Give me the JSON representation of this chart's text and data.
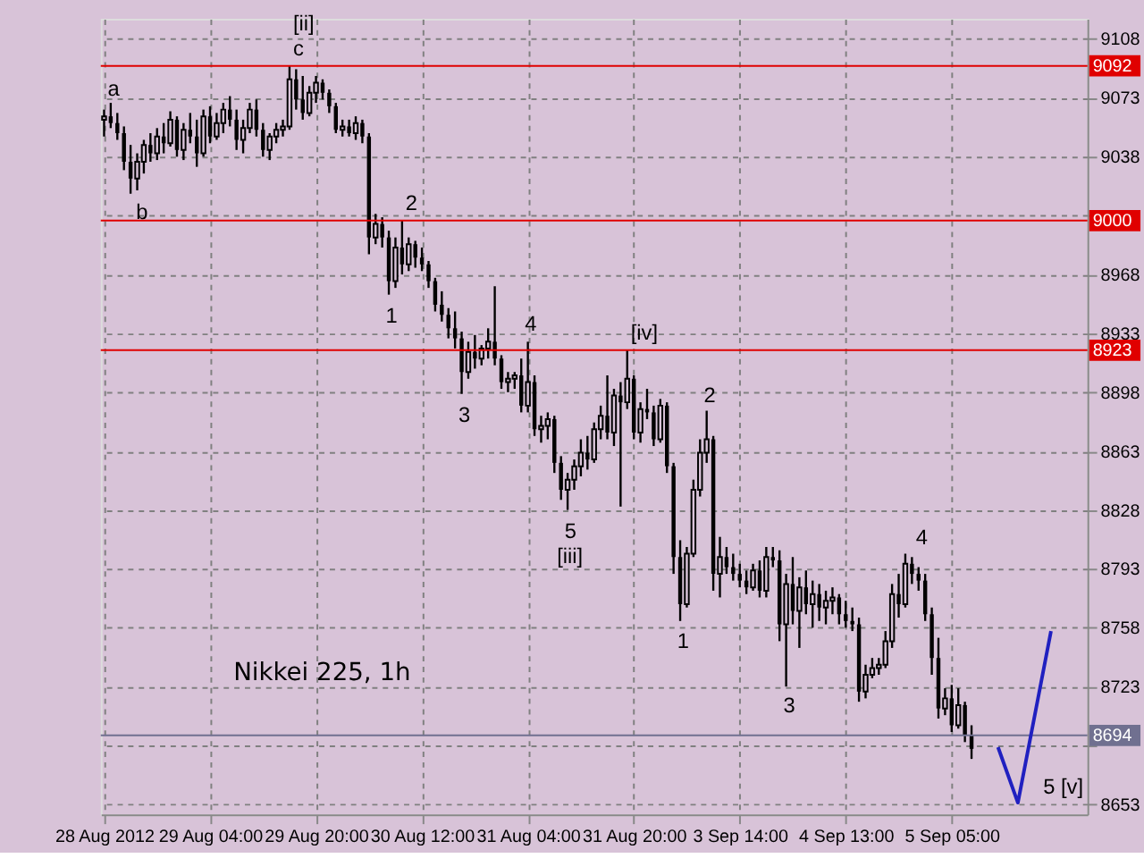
{
  "chart_data": {
    "type": "candlestick",
    "title": "Nikkei 225, 1h",
    "categories": [
      "28 Aug 2012",
      null,
      null,
      null,
      null,
      null,
      null,
      null,
      null,
      null,
      null,
      null,
      null,
      null,
      null,
      null,
      "29 Aug 04:00",
      null,
      null,
      null,
      null,
      null,
      null,
      null,
      null,
      null,
      null,
      null,
      null,
      null,
      null,
      null,
      "29 Aug 20:00",
      null,
      null,
      null,
      null,
      null,
      null,
      null,
      null,
      null,
      null,
      null,
      null,
      null,
      null,
      null,
      "30 Aug 12:00",
      null,
      null,
      null,
      null,
      null,
      null,
      null,
      null,
      null,
      null,
      null,
      null,
      null,
      null,
      null,
      "31 Aug 04:00",
      null,
      null,
      null,
      null,
      null,
      null,
      null,
      null,
      null,
      null,
      null,
      null,
      null,
      null,
      null,
      "31 Aug 20:00",
      null,
      null,
      null,
      null,
      null,
      null,
      null,
      null,
      null,
      null,
      null,
      null,
      null,
      null,
      null,
      "3 Sep 14:00",
      null,
      null,
      null,
      null,
      null,
      null,
      null,
      null,
      null,
      null,
      null,
      null,
      null,
      null,
      null,
      "4 Sep 13:00",
      null,
      null,
      null,
      null,
      null,
      null,
      null,
      null,
      null,
      null,
      null,
      null,
      null,
      null,
      null,
      "5 Sep 05:00",
      null,
      null,
      null,
      null,
      null,
      null,
      null,
      null,
      null,
      null,
      null,
      null,
      null,
      null,
      null,
      null,
      null,
      null,
      null,
      null
    ],
    "ohlc": [
      [
        9060,
        9066,
        9050,
        9062
      ],
      [
        9062,
        9070,
        9055,
        9058
      ],
      [
        9058,
        9064,
        9048,
        9052
      ],
      [
        9052,
        9056,
        9030,
        9035
      ],
      [
        9035,
        9045,
        9016,
        9025
      ],
      [
        9025,
        9040,
        9018,
        9035
      ],
      [
        9035,
        9048,
        9028,
        9045
      ],
      [
        9045,
        9052,
        9035,
        9040
      ],
      [
        9040,
        9055,
        9036,
        9050
      ],
      [
        9050,
        9058,
        9040,
        9046
      ],
      [
        9046,
        9065,
        9044,
        9060
      ],
      [
        9060,
        9062,
        9038,
        9042
      ],
      [
        9042,
        9058,
        9036,
        9054
      ],
      [
        9054,
        9064,
        9046,
        9050
      ],
      [
        9050,
        9060,
        9032,
        9040
      ],
      [
        9040,
        9066,
        9038,
        9062
      ],
      [
        9062,
        9068,
        9046,
        9050
      ],
      [
        9050,
        9064,
        9048,
        9058
      ],
      [
        9058,
        9070,
        9052,
        9066
      ],
      [
        9066,
        9074,
        9056,
        9060
      ],
      [
        9060,
        9066,
        9042,
        9048
      ],
      [
        9048,
        9060,
        9040,
        9055
      ],
      [
        9055,
        9070,
        9052,
        9066
      ],
      [
        9066,
        9072,
        9050,
        9054
      ],
      [
        9054,
        9058,
        9038,
        9042
      ],
      [
        9042,
        9052,
        9036,
        9050
      ],
      [
        9050,
        9058,
        9046,
        9054
      ],
      [
        9054,
        9060,
        9050,
        9056
      ],
      [
        9056,
        9092,
        9054,
        9084
      ],
      [
        9084,
        9090,
        9066,
        9072
      ],
      [
        9072,
        9086,
        9060,
        9064
      ],
      [
        9064,
        9080,
        9062,
        9076
      ],
      [
        9076,
        9086,
        9070,
        9082
      ],
      [
        9082,
        9084,
        9072,
        9076
      ],
      [
        9076,
        9078,
        9064,
        9068
      ],
      [
        9068,
        9070,
        9052,
        9054
      ],
      [
        9054,
        9060,
        9050,
        9056
      ],
      [
        9056,
        9060,
        9050,
        9052
      ],
      [
        9052,
        9062,
        9048,
        9058
      ],
      [
        9058,
        9060,
        9046,
        9050
      ],
      [
        9050,
        9052,
        8980,
        8990
      ],
      [
        8990,
        9004,
        8986,
        8998
      ],
      [
        8998,
        9002,
        8984,
        8990
      ],
      [
        8990,
        8994,
        8956,
        8964
      ],
      [
        8964,
        8990,
        8960,
        8984
      ],
      [
        8984,
        9000,
        8968,
        8974
      ],
      [
        8974,
        8990,
        8970,
        8986
      ],
      [
        8986,
        8988,
        8972,
        8978
      ],
      [
        8978,
        8984,
        8970,
        8974
      ],
      [
        8974,
        8976,
        8960,
        8964
      ],
      [
        8964,
        8966,
        8946,
        8950
      ],
      [
        8950,
        8958,
        8940,
        8944
      ],
      [
        8944,
        8948,
        8930,
        8936
      ],
      [
        8936,
        8946,
        8924,
        8930
      ],
      [
        8930,
        8934,
        8897,
        8910
      ],
      [
        8910,
        8928,
        8906,
        8922
      ],
      [
        8922,
        8932,
        8912,
        8918
      ],
      [
        8918,
        8926,
        8914,
        8924
      ],
      [
        8924,
        8936,
        8918,
        8928
      ],
      [
        8928,
        8961,
        8914,
        8918
      ],
      [
        8918,
        8920,
        8900,
        8904
      ],
      [
        8904,
        8910,
        8898,
        8906
      ],
      [
        8906,
        8910,
        8900,
        8908
      ],
      [
        8908,
        8918,
        8886,
        8890
      ],
      [
        8890,
        8928,
        8886,
        8904
      ],
      [
        8904,
        8908,
        8872,
        8876
      ],
      [
        8876,
        8884,
        8868,
        8878
      ],
      [
        8878,
        8886,
        8870,
        8882
      ],
      [
        8882,
        8884,
        8850,
        8856
      ],
      [
        8856,
        8860,
        8834,
        8840
      ],
      [
        8840,
        8850,
        8828,
        8846
      ],
      [
        8846,
        8858,
        8840,
        8854
      ],
      [
        8854,
        8870,
        8848,
        8862
      ],
      [
        8862,
        8872,
        8852,
        8858
      ],
      [
        8858,
        8880,
        8856,
        8876
      ],
      [
        8876,
        8890,
        8870,
        8884
      ],
      [
        8884,
        8908,
        8870,
        8874
      ],
      [
        8874,
        8900,
        8866,
        8896
      ],
      [
        8896,
        8904,
        8830,
        8892
      ],
      [
        8892,
        8923,
        8888,
        8906
      ],
      [
        8906,
        8908,
        8870,
        8874
      ],
      [
        8874,
        8892,
        8868,
        8888
      ],
      [
        8888,
        8900,
        8882,
        8886
      ],
      [
        8886,
        8890,
        8866,
        8870
      ],
      [
        8870,
        8894,
        8868,
        8890
      ],
      [
        8890,
        8892,
        8850,
        8854
      ],
      [
        8854,
        8856,
        8790,
        8800
      ],
      [
        8800,
        8810,
        8762,
        8772
      ],
      [
        8772,
        8806,
        8770,
        8802
      ],
      [
        8802,
        8846,
        8800,
        8840
      ],
      [
        8840,
        8870,
        8836,
        8862
      ],
      [
        8862,
        8887,
        8856,
        8870
      ],
      [
        8870,
        8872,
        8780,
        8790
      ],
      [
        8790,
        8812,
        8776,
        8800
      ],
      [
        8800,
        8806,
        8790,
        8794
      ],
      [
        8794,
        8802,
        8786,
        8790
      ],
      [
        8790,
        8796,
        8782,
        8786
      ],
      [
        8786,
        8792,
        8778,
        8782
      ],
      [
        8782,
        8796,
        8780,
        8792
      ],
      [
        8792,
        8798,
        8776,
        8780
      ],
      [
        8780,
        8806,
        8776,
        8800
      ],
      [
        8800,
        8806,
        8794,
        8798
      ],
      [
        8798,
        8804,
        8750,
        8760
      ],
      [
        8760,
        8790,
        8723,
        8784
      ],
      [
        8784,
        8800,
        8760,
        8768
      ],
      [
        8768,
        8788,
        8746,
        8782
      ],
      [
        8782,
        8792,
        8766,
        8772
      ],
      [
        8772,
        8786,
        8758,
        8778
      ],
      [
        8778,
        8784,
        8762,
        8770
      ],
      [
        8770,
        8780,
        8760,
        8774
      ],
      [
        8774,
        8782,
        8766,
        8776
      ],
      [
        8776,
        8778,
        8760,
        8766
      ],
      [
        8766,
        8774,
        8758,
        8762
      ],
      [
        8762,
        8770,
        8756,
        8760
      ],
      [
        8760,
        8764,
        8714,
        8720
      ],
      [
        8720,
        8736,
        8716,
        8730
      ],
      [
        8730,
        8740,
        8728,
        8734
      ],
      [
        8734,
        8740,
        8730,
        8736
      ],
      [
        8736,
        8756,
        8734,
        8750
      ],
      [
        8750,
        8784,
        8746,
        8778
      ],
      [
        8778,
        8790,
        8764,
        8772
      ],
      [
        8772,
        8802,
        8770,
        8796
      ],
      [
        8796,
        8800,
        8784,
        8790
      ],
      [
        8790,
        8794,
        8780,
        8786
      ],
      [
        8786,
        8790,
        8762,
        8766
      ],
      [
        8766,
        8770,
        8730,
        8740
      ],
      [
        8740,
        8752,
        8704,
        8710
      ],
      [
        8710,
        8722,
        8706,
        8716
      ],
      [
        8716,
        8724,
        8696,
        8700
      ],
      [
        8700,
        8722,
        8698,
        8712
      ],
      [
        8712,
        8714,
        8690,
        8694
      ],
      [
        8694,
        8700,
        8680,
        8686
      ],
      null,
      null,
      null,
      null,
      null,
      null,
      null,
      null,
      null,
      null,
      null,
      null,
      null,
      null,
      null,
      null,
      null
    ],
    "color": "#000000",
    "series": [
      {
        "type": "line",
        "color": "#2020c0",
        "values": [
          null,
          null,
          null,
          null,
          null,
          null,
          null,
          null,
          null,
          null,
          null,
          null,
          null,
          null,
          null,
          null,
          null,
          null,
          null,
          null,
          null,
          null,
          null,
          null,
          null,
          null,
          null,
          null,
          null,
          null,
          null,
          null,
          null,
          null,
          null,
          null,
          null,
          null,
          null,
          null,
          null,
          null,
          null,
          null,
          null,
          null,
          null,
          null,
          null,
          null,
          null,
          null,
          null,
          null,
          null,
          null,
          null,
          null,
          null,
          null,
          null,
          null,
          null,
          null,
          null,
          null,
          null,
          null,
          null,
          null,
          null,
          null,
          null,
          null,
          null,
          null,
          null,
          null,
          null,
          null,
          null,
          null,
          null,
          null,
          null,
          null,
          null,
          null,
          null,
          null,
          null,
          null,
          null,
          null,
          null,
          null,
          null,
          null,
          null,
          null,
          null,
          null,
          null,
          null,
          null,
          null,
          null,
          null,
          null,
          null,
          null,
          null,
          null,
          null,
          null,
          null,
          null,
          null,
          null,
          null,
          null,
          null,
          null,
          null,
          null,
          null,
          null,
          null,
          null,
          null,
          null,
          null,
          null,
          null,
          null,
          8687,
          null,
          null,
          8654,
          null,
          null,
          null,
          null,
          8756,
          null,
          null,
          null,
          null,
          null
        ]
      }
    ],
    "ylim": [
      8647,
      9120
    ],
    "yticks": [
      8653,
      {
        "value": 8688,
        "label": null
      },
      8723,
      8758,
      8793,
      8828,
      8863,
      8898,
      8933,
      8968,
      {
        "value": 9003,
        "label": null
      },
      9038,
      9073,
      9108
    ],
    "grid": true,
    "ref_lines": [
      {
        "axis": "y",
        "value": 9092,
        "label": "9092",
        "color": "#e00000"
      },
      {
        "axis": "y",
        "value": 9000,
        "label": "9000",
        "color": "#e00000"
      },
      {
        "axis": "y",
        "value": 8923,
        "label": "8923",
        "color": "#e00000"
      },
      {
        "axis": "y",
        "value": 8694,
        "label": "8694",
        "color": "#707090"
      }
    ],
    "annotations": [
      {
        "text": "a",
        "y": 9066
      },
      "b",
      {
        "text": "[ii]",
        "y": 9092
      },
      {
        "text": "c",
        "y": 9092
      },
      {
        "text": "1",
        "y": 8956
      },
      {
        "text": "2",
        "y": 9000
      },
      {
        "text": "3",
        "y": 8897
      },
      {
        "text": "4",
        "y": 8928
      },
      {
        "text": "5",
        "y": 8828
      },
      "[iii]",
      {
        "text": "[iv]",
        "y": 8923
      },
      "1",
      "2",
      "3",
      "4",
      "5 [v]"
    ]
  }
}
